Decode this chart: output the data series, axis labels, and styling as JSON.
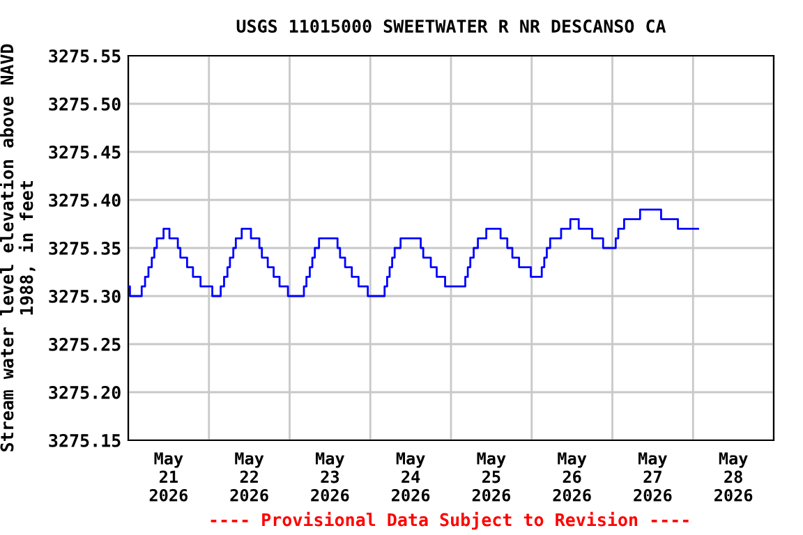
{
  "chart_data": {
    "type": "step",
    "title": "USGS 11015000 SWEETWATER R NR DESCANSO CA",
    "ylabel": "Stream water level elevation above NAVD\n1988, in feet",
    "annotations": [
      "---- Provisional Data Subject to Revision ----"
    ],
    "x": [
      "2026-05-21T00:00",
      "2026-05-21T00:30",
      "2026-05-21T04:00",
      "2026-05-21T05:00",
      "2026-05-21T06:00",
      "2026-05-21T07:00",
      "2026-05-21T07:45",
      "2026-05-21T08:30",
      "2026-05-21T10:30",
      "2026-05-21T12:15",
      "2026-05-21T14:45",
      "2026-05-21T15:30",
      "2026-05-21T17:30",
      "2026-05-21T19:15",
      "2026-05-21T21:30",
      "2026-05-22T01:00",
      "2026-05-22T03:30",
      "2026-05-22T04:30",
      "2026-05-22T05:30",
      "2026-05-22T06:15",
      "2026-05-22T07:15",
      "2026-05-22T08:00",
      "2026-05-22T09:45",
      "2026-05-22T12:30",
      "2026-05-22T15:00",
      "2026-05-22T15:45",
      "2026-05-22T17:30",
      "2026-05-22T19:15",
      "2026-05-22T21:00",
      "2026-05-22T23:30",
      "2026-05-23T04:15",
      "2026-05-23T05:00",
      "2026-05-23T06:00",
      "2026-05-23T06:45",
      "2026-05-23T07:30",
      "2026-05-23T08:45",
      "2026-05-23T14:15",
      "2026-05-23T15:00",
      "2026-05-23T16:30",
      "2026-05-23T18:30",
      "2026-05-23T20:30",
      "2026-05-23T23:15",
      "2026-05-24T04:15",
      "2026-05-24T05:00",
      "2026-05-24T05:45",
      "2026-05-24T06:30",
      "2026-05-24T07:15",
      "2026-05-24T09:00",
      "2026-05-24T15:00",
      "2026-05-24T15:45",
      "2026-05-24T18:00",
      "2026-05-24T19:45",
      "2026-05-24T22:15",
      "2026-05-25T04:15",
      "2026-05-25T05:00",
      "2026-05-25T05:45",
      "2026-05-25T06:45",
      "2026-05-25T08:00",
      "2026-05-25T10:30",
      "2026-05-25T14:45",
      "2026-05-25T16:45",
      "2026-05-25T18:15",
      "2026-05-25T20:15",
      "2026-05-25T23:45",
      "2026-05-26T03:00",
      "2026-05-26T03:45",
      "2026-05-26T04:30",
      "2026-05-26T05:30",
      "2026-05-26T08:45",
      "2026-05-26T11:30",
      "2026-05-26T14:00",
      "2026-05-26T18:00",
      "2026-05-26T21:15",
      "2026-05-27T01:00",
      "2026-05-27T01:45",
      "2026-05-27T03:30",
      "2026-05-27T08:15",
      "2026-05-27T14:30",
      "2026-05-27T19:30",
      "2026-05-28T01:30"
    ],
    "series": [
      {
        "color": "#0000ff",
        "values": [
          3275.31,
          3275.3,
          3275.31,
          3275.32,
          3275.33,
          3275.34,
          3275.35,
          3275.36,
          3275.37,
          3275.36,
          3275.35,
          3275.34,
          3275.33,
          3275.32,
          3275.31,
          3275.3,
          3275.31,
          3275.32,
          3275.33,
          3275.34,
          3275.35,
          3275.36,
          3275.37,
          3275.36,
          3275.35,
          3275.34,
          3275.33,
          3275.32,
          3275.31,
          3275.3,
          3275.31,
          3275.32,
          3275.33,
          3275.34,
          3275.35,
          3275.36,
          3275.35,
          3275.34,
          3275.33,
          3275.32,
          3275.31,
          3275.3,
          3275.31,
          3275.32,
          3275.33,
          3275.34,
          3275.35,
          3275.36,
          3275.35,
          3275.34,
          3275.33,
          3275.32,
          3275.31,
          3275.32,
          3275.33,
          3275.34,
          3275.35,
          3275.36,
          3275.37,
          3275.36,
          3275.35,
          3275.34,
          3275.33,
          3275.32,
          3275.33,
          3275.34,
          3275.35,
          3275.36,
          3275.37,
          3275.38,
          3275.37,
          3275.36,
          3275.35,
          3275.36,
          3275.37,
          3275.38,
          3275.39,
          3275.38,
          3275.37,
          3275.37
        ]
      }
    ],
    "xlim": [
      "2026-05-21T00:00",
      "2026-05-29T00:00"
    ],
    "xticks": [
      {
        "value": "2026-05-21T00:00",
        "label": null
      },
      {
        "value": "2026-05-21T12:00",
        "label": "May\n21\n2026"
      },
      {
        "value": "2026-05-22T00:00",
        "label": null
      },
      {
        "value": "2026-05-22T12:00",
        "label": "May\n22\n2026"
      },
      {
        "value": "2026-05-23T00:00",
        "label": null
      },
      {
        "value": "2026-05-23T12:00",
        "label": "May\n23\n2026"
      },
      {
        "value": "2026-05-24T00:00",
        "label": null
      },
      {
        "value": "2026-05-24T12:00",
        "label": "May\n24\n2026"
      },
      {
        "value": "2026-05-25T00:00",
        "label": null
      },
      {
        "value": "2026-05-25T12:00",
        "label": "May\n25\n2026"
      },
      {
        "value": "2026-05-26T00:00",
        "label": null
      },
      {
        "value": "2026-05-26T12:00",
        "label": "May\n26\n2026"
      },
      {
        "value": "2026-05-27T00:00",
        "label": null
      },
      {
        "value": "2026-05-27T12:00",
        "label": "May\n27\n2026"
      },
      {
        "value": "2026-05-28T00:00",
        "label": null
      },
      {
        "value": "2026-05-28T12:00",
        "label": "May\n28\n2026"
      },
      {
        "value": "2026-05-29T00:00",
        "label": null
      }
    ],
    "ylim": [
      3275.15,
      3275.55
    ],
    "yticks": [
      3275.15,
      {
        "value": 3275.2,
        "label": "3275.20"
      },
      3275.25,
      {
        "value": 3275.3,
        "label": "3275.30"
      },
      3275.35,
      {
        "value": 3275.4,
        "label": "3275.40"
      },
      3275.45,
      {
        "value": 3275.5,
        "label": "3275.50"
      },
      3275.55
    ],
    "grid": true,
    "line_style": "solid"
  }
}
